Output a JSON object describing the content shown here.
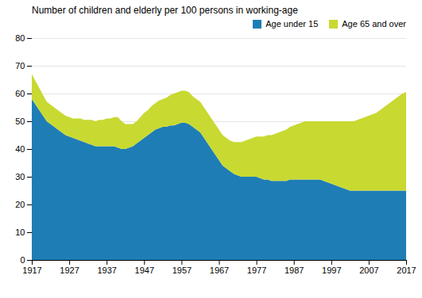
{
  "chart_data": {
    "type": "area",
    "stacked": true,
    "title": "Number of children and elderly per 100 persons in working-age",
    "x": [
      1917,
      1918,
      1919,
      1920,
      1921,
      1922,
      1923,
      1924,
      1925,
      1926,
      1927,
      1928,
      1929,
      1930,
      1931,
      1932,
      1933,
      1934,
      1935,
      1936,
      1937,
      1938,
      1939,
      1940,
      1941,
      1942,
      1943,
      1944,
      1945,
      1946,
      1947,
      1948,
      1949,
      1950,
      1951,
      1952,
      1953,
      1954,
      1955,
      1956,
      1957,
      1958,
      1959,
      1960,
      1961,
      1962,
      1963,
      1964,
      1965,
      1966,
      1967,
      1968,
      1969,
      1970,
      1971,
      1972,
      1973,
      1974,
      1975,
      1976,
      1977,
      1978,
      1979,
      1980,
      1981,
      1982,
      1983,
      1984,
      1985,
      1986,
      1987,
      1988,
      1989,
      1990,
      1991,
      1992,
      1993,
      1994,
      1995,
      1996,
      1997,
      1998,
      1999,
      2000,
      2001,
      2002,
      2003,
      2004,
      2005,
      2006,
      2007,
      2008,
      2009,
      2010,
      2011,
      2012,
      2013,
      2014,
      2015,
      2016,
      2017
    ],
    "series": [
      {
        "name": "Age under 15",
        "color": "#1f7db5",
        "values": [
          58.0,
          56.0,
          54.0,
          52.0,
          50.0,
          49.0,
          48.0,
          47.0,
          46.0,
          45.0,
          44.5,
          44.0,
          43.5,
          43.0,
          42.5,
          42.0,
          41.5,
          41.0,
          41.0,
          41.0,
          41.0,
          41.0,
          41.0,
          40.5,
          40.0,
          40.0,
          40.5,
          41.0,
          42.0,
          43.0,
          44.0,
          45.0,
          46.0,
          47.0,
          47.5,
          48.0,
          48.0,
          48.5,
          48.5,
          49.0,
          49.5,
          49.5,
          49.0,
          48.0,
          47.0,
          46.0,
          44.0,
          42.0,
          40.0,
          38.0,
          36.0,
          34.0,
          33.0,
          32.0,
          31.0,
          30.5,
          30.0,
          30.0,
          30.0,
          30.0,
          30.0,
          29.5,
          29.0,
          29.0,
          28.5,
          28.5,
          28.5,
          28.5,
          28.5,
          29.0,
          29.0,
          29.0,
          29.0,
          29.0,
          29.0,
          29.0,
          29.0,
          29.0,
          28.5,
          28.0,
          27.5,
          27.0,
          26.5,
          26.0,
          25.5,
          25.0,
          25.0,
          25.0,
          25.0,
          25.0,
          25.0,
          25.0,
          25.0,
          25.0,
          25.0,
          25.0,
          25.0,
          25.0,
          25.0,
          25.0,
          25.0
        ]
      },
      {
        "name": "Age 65 and over",
        "color": "#c8d932",
        "values": [
          9.0,
          8.5,
          8.0,
          7.5,
          7.0,
          7.0,
          7.0,
          7.0,
          7.0,
          7.0,
          7.0,
          7.0,
          7.5,
          8.0,
          8.0,
          8.5,
          9.0,
          9.0,
          9.5,
          9.5,
          10.0,
          10.0,
          10.5,
          11.0,
          10.0,
          9.0,
          8.5,
          8.0,
          8.0,
          8.5,
          9.0,
          9.0,
          9.5,
          9.5,
          10.0,
          10.0,
          10.5,
          11.0,
          11.5,
          11.5,
          11.5,
          11.5,
          11.5,
          11.0,
          11.0,
          11.0,
          11.0,
          11.0,
          11.0,
          11.0,
          11.0,
          11.0,
          11.0,
          11.0,
          11.5,
          12.0,
          12.5,
          13.0,
          13.5,
          14.0,
          14.5,
          15.0,
          15.5,
          16.0,
          16.5,
          17.0,
          17.5,
          18.0,
          18.5,
          19.0,
          19.5,
          20.0,
          20.5,
          21.0,
          21.0,
          21.0,
          21.0,
          21.0,
          21.5,
          22.0,
          22.5,
          23.0,
          23.5,
          24.0,
          24.5,
          25.0,
          25.0,
          25.5,
          26.0,
          26.5,
          27.0,
          27.5,
          28.0,
          29.0,
          30.0,
          31.0,
          32.0,
          33.0,
          34.0,
          35.0,
          35.5
        ]
      }
    ],
    "xlim": [
      1917,
      2017
    ],
    "ylim": [
      0,
      80
    ],
    "xticks": [
      1917,
      1927,
      1937,
      1947,
      1957,
      1967,
      1977,
      1987,
      1997,
      2007,
      2017
    ],
    "yticks": [
      0,
      10,
      20,
      30,
      40,
      50,
      60,
      70,
      80
    ],
    "grid": true,
    "legend": "upper right"
  }
}
